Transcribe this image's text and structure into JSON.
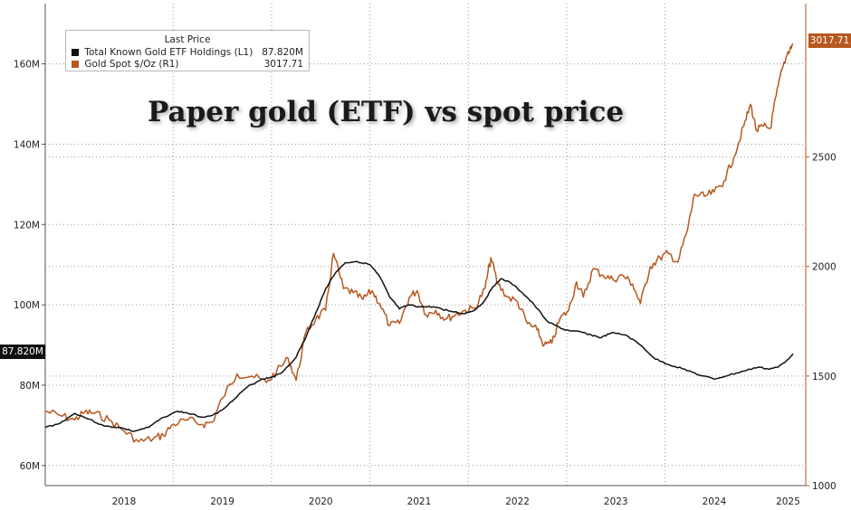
{
  "chart_data": {
    "type": "line",
    "title": "Paper gold (ETF) vs spot price",
    "legend": {
      "heading": "Last Price",
      "position": "top-left",
      "entries": [
        {
          "name": "Total Known Gold ETF Holdings  (L1)",
          "value": "87.820M",
          "color": "#111111"
        },
        {
          "name": "Gold Spot $/Oz  (R1)",
          "value": "3017.71",
          "color": "#b5581f"
        }
      ]
    },
    "x_axis": {
      "range": [
        2017.65,
        2025.38
      ],
      "ticks": [
        {
          "label": "2018",
          "center": 2018.45
        },
        {
          "label": "2019",
          "center": 2019.45
        },
        {
          "label": "2020",
          "center": 2020.45
        },
        {
          "label": "2021",
          "center": 2021.45
        },
        {
          "label": "2022",
          "center": 2022.45
        },
        {
          "label": "2023",
          "center": 2023.45
        },
        {
          "label": "2024",
          "center": 2024.45
        },
        {
          "label": "2025",
          "center": 2025.2
        }
      ],
      "separators": [
        2018.95,
        2019.95,
        2020.95,
        2021.95,
        2022.95,
        2023.95
      ]
    },
    "left_axis": {
      "range": [
        55,
        175
      ],
      "ticks": [
        {
          "value": 60,
          "label": "60M"
        },
        {
          "value": 80,
          "label": "80M"
        },
        {
          "value": 100,
          "label": "100M"
        },
        {
          "value": 120,
          "label": "120M"
        },
        {
          "value": 140,
          "label": "140M"
        },
        {
          "value": 160,
          "label": "160M"
        }
      ]
    },
    "right_axis": {
      "range": [
        1000,
        3200
      ],
      "ticks": [
        {
          "value": 1000,
          "label": "1000"
        },
        {
          "value": 1500,
          "label": "1500"
        },
        {
          "value": 2000,
          "label": "2000"
        },
        {
          "value": 2500,
          "label": "2500"
        }
      ]
    },
    "series": [
      {
        "name": "Total Known Gold ETF Holdings",
        "axis": "left",
        "unit": "M oz",
        "color": "#111111",
        "last_label": "87.820M",
        "points": [
          [
            2017.65,
            69.5
          ],
          [
            2017.8,
            70.5
          ],
          [
            2017.95,
            73
          ],
          [
            2018.1,
            71.5
          ],
          [
            2018.25,
            69.8
          ],
          [
            2018.4,
            69.5
          ],
          [
            2018.55,
            68.5
          ],
          [
            2018.7,
            69.5
          ],
          [
            2018.85,
            72
          ],
          [
            2019.0,
            73.5
          ],
          [
            2019.1,
            73
          ],
          [
            2019.25,
            72
          ],
          [
            2019.4,
            73
          ],
          [
            2019.55,
            76
          ],
          [
            2019.7,
            79.5
          ],
          [
            2019.85,
            81.5
          ],
          [
            2019.95,
            82
          ],
          [
            2020.05,
            83
          ],
          [
            2020.2,
            87
          ],
          [
            2020.3,
            92
          ],
          [
            2020.4,
            98
          ],
          [
            2020.5,
            104
          ],
          [
            2020.6,
            108
          ],
          [
            2020.7,
            110.5
          ],
          [
            2020.82,
            110.8
          ],
          [
            2020.95,
            110
          ],
          [
            2021.05,
            107
          ],
          [
            2021.15,
            102
          ],
          [
            2021.25,
            99
          ],
          [
            2021.35,
            100
          ],
          [
            2021.45,
            99.5
          ],
          [
            2021.6,
            99.5
          ],
          [
            2021.75,
            98.5
          ],
          [
            2021.9,
            97.8
          ],
          [
            2022.0,
            98.5
          ],
          [
            2022.1,
            100.5
          ],
          [
            2022.2,
            104.5
          ],
          [
            2022.28,
            106.5
          ],
          [
            2022.38,
            105.5
          ],
          [
            2022.5,
            103
          ],
          [
            2022.62,
            100
          ],
          [
            2022.75,
            96
          ],
          [
            2022.9,
            94
          ],
          [
            2023.0,
            93.5
          ],
          [
            2023.1,
            93.2
          ],
          [
            2023.2,
            92.5
          ],
          [
            2023.3,
            91.8
          ],
          [
            2023.4,
            93
          ],
          [
            2023.55,
            92.5
          ],
          [
            2023.7,
            90
          ],
          [
            2023.85,
            86.5
          ],
          [
            2024.0,
            85
          ],
          [
            2024.15,
            84
          ],
          [
            2024.3,
            82.5
          ],
          [
            2024.45,
            81.5
          ],
          [
            2024.6,
            82.5
          ],
          [
            2024.75,
            83.5
          ],
          [
            2024.9,
            84.5
          ],
          [
            2025.0,
            84
          ],
          [
            2025.1,
            84.5
          ],
          [
            2025.18,
            86
          ],
          [
            2025.25,
            87.82
          ]
        ]
      },
      {
        "name": "Gold Spot $/Oz",
        "axis": "right",
        "unit": "USD",
        "color": "#b5581f",
        "last_label": "3017.71",
        "points": [
          [
            2017.65,
            1340
          ],
          [
            2017.8,
            1320
          ],
          [
            2017.95,
            1300
          ],
          [
            2018.05,
            1335
          ],
          [
            2018.15,
            1330
          ],
          [
            2018.3,
            1300
          ],
          [
            2018.45,
            1250
          ],
          [
            2018.6,
            1200
          ],
          [
            2018.75,
            1215
          ],
          [
            2018.85,
            1230
          ],
          [
            2018.95,
            1280
          ],
          [
            2019.1,
            1300
          ],
          [
            2019.25,
            1280
          ],
          [
            2019.35,
            1290
          ],
          [
            2019.45,
            1400
          ],
          [
            2019.6,
            1510
          ],
          [
            2019.75,
            1500
          ],
          [
            2019.9,
            1470
          ],
          [
            2020.0,
            1520
          ],
          [
            2020.12,
            1580
          ],
          [
            2020.2,
            1480
          ],
          [
            2020.3,
            1700
          ],
          [
            2020.4,
            1760
          ],
          [
            2020.5,
            1800
          ],
          [
            2020.58,
            2060
          ],
          [
            2020.68,
            1900
          ],
          [
            2020.78,
            1880
          ],
          [
            2020.88,
            1850
          ],
          [
            2020.97,
            1890
          ],
          [
            2021.05,
            1830
          ],
          [
            2021.15,
            1730
          ],
          [
            2021.25,
            1740
          ],
          [
            2021.35,
            1860
          ],
          [
            2021.43,
            1890
          ],
          [
            2021.52,
            1780
          ],
          [
            2021.62,
            1800
          ],
          [
            2021.72,
            1760
          ],
          [
            2021.82,
            1780
          ],
          [
            2021.92,
            1800
          ],
          [
            2022.02,
            1810
          ],
          [
            2022.12,
            1900
          ],
          [
            2022.18,
            2040
          ],
          [
            2022.25,
            1920
          ],
          [
            2022.35,
            1860
          ],
          [
            2022.45,
            1840
          ],
          [
            2022.55,
            1740
          ],
          [
            2022.65,
            1710
          ],
          [
            2022.72,
            1640
          ],
          [
            2022.8,
            1650
          ],
          [
            2022.88,
            1760
          ],
          [
            2022.97,
            1800
          ],
          [
            2023.05,
            1930
          ],
          [
            2023.12,
            1860
          ],
          [
            2023.22,
            1990
          ],
          [
            2023.32,
            1960
          ],
          [
            2023.42,
            1940
          ],
          [
            2023.52,
            1960
          ],
          [
            2023.62,
            1920
          ],
          [
            2023.7,
            1830
          ],
          [
            2023.8,
            2000
          ],
          [
            2023.9,
            2040
          ],
          [
            2023.98,
            2060
          ],
          [
            2024.08,
            2020
          ],
          [
            2024.18,
            2170
          ],
          [
            2024.25,
            2330
          ],
          [
            2024.35,
            2320
          ],
          [
            2024.45,
            2340
          ],
          [
            2024.55,
            2390
          ],
          [
            2024.65,
            2500
          ],
          [
            2024.75,
            2640
          ],
          [
            2024.82,
            2740
          ],
          [
            2024.88,
            2620
          ],
          [
            2024.95,
            2640
          ],
          [
            2025.02,
            2630
          ],
          [
            2025.08,
            2780
          ],
          [
            2025.14,
            2900
          ],
          [
            2025.2,
            2980
          ],
          [
            2025.25,
            3017.71
          ]
        ]
      }
    ]
  }
}
